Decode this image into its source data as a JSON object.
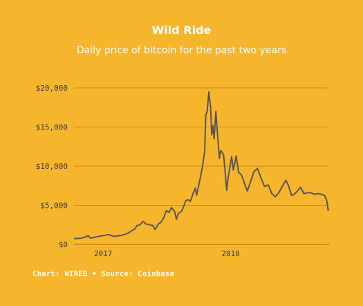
{
  "chart_data": {
    "type": "line",
    "title": "Wild Ride",
    "subtitle": "Daily price of bitcoin for the past two years",
    "xlabel": "",
    "ylabel": "",
    "ylim": [
      0,
      20000
    ],
    "xlim": [
      "2016-11-26",
      "2018-11-26"
    ],
    "grid": true,
    "colors": {
      "background": "#F5B62E",
      "line": "#5A5552",
      "grid": "#B97C16",
      "text": "#FFFFFF"
    },
    "yticks": [
      {
        "value": 0,
        "label": "$0"
      },
      {
        "value": 5000,
        "label": "$5,000"
      },
      {
        "value": 10000,
        "label": "$10,000"
      },
      {
        "value": 15000,
        "label": "$15,000"
      },
      {
        "value": 20000,
        "label": "$20,000"
      }
    ],
    "xticks": [
      {
        "value": "2017-01-01",
        "label": "2017"
      },
      {
        "value": "2018-01-01",
        "label": "2018"
      }
    ],
    "series": [
      {
        "x": [
          "2016-11-26",
          "2016-12-15",
          "2017-01-01",
          "2017-01-05",
          "2017-01-12",
          "2017-02-01",
          "2017-02-25",
          "2017-03-05",
          "2017-03-20",
          "2017-04-01",
          "2017-04-15",
          "2017-05-01",
          "2017-05-10",
          "2017-05-20",
          "2017-05-25",
          "2017-06-01",
          "2017-06-12",
          "2017-06-20",
          "2017-07-01",
          "2017-07-10",
          "2017-07-16",
          "2017-07-25",
          "2017-08-01",
          "2017-08-10",
          "2017-08-17",
          "2017-08-25",
          "2017-09-01",
          "2017-09-10",
          "2017-09-15",
          "2017-09-20",
          "2017-10-01",
          "2017-10-12",
          "2017-10-20",
          "2017-10-25",
          "2017-11-01",
          "2017-11-08",
          "2017-11-12",
          "2017-11-20",
          "2017-11-28",
          "2017-12-05",
          "2017-12-08",
          "2017-12-12",
          "2017-12-17",
          "2017-12-22",
          "2017-12-25",
          "2017-12-28",
          "2018-01-01",
          "2018-01-06",
          "2018-01-10",
          "2018-01-16",
          "2018-01-20",
          "2018-01-28",
          "2018-02-01",
          "2018-02-06",
          "2018-02-10",
          "2018-02-20",
          "2018-02-25",
          "2018-03-05",
          "2018-03-12",
          "2018-03-20",
          "2018-03-28",
          "2018-04-06",
          "2018-04-15",
          "2018-04-25",
          "2018-05-05",
          "2018-05-15",
          "2018-05-25",
          "2018-06-05",
          "2018-06-15",
          "2018-06-25",
          "2018-07-05",
          "2018-07-15",
          "2018-07-25",
          "2018-08-01",
          "2018-08-10",
          "2018-08-15",
          "2018-08-25",
          "2018-09-05",
          "2018-09-15",
          "2018-09-25",
          "2018-10-05",
          "2018-10-15",
          "2018-10-25",
          "2018-11-05",
          "2018-11-14",
          "2018-11-19",
          "2018-11-23",
          "2018-11-26"
        ],
        "y": [
          740,
          780,
          1000,
          1120,
          800,
          990,
          1180,
          1250,
          1030,
          1080,
          1200,
          1450,
          1750,
          2000,
          2400,
          2450,
          2950,
          2600,
          2500,
          2400,
          1900,
          2600,
          2800,
          3400,
          4300,
          4100,
          4700,
          4200,
          3200,
          3900,
          4300,
          5600,
          5700,
          5500,
          6400,
          7200,
          6300,
          8000,
          9800,
          11800,
          16500,
          17000,
          19500,
          17500,
          14000,
          15200,
          13500,
          17000,
          14500,
          11000,
          12000,
          11500,
          9500,
          6900,
          8500,
          11200,
          9500,
          11300,
          9200,
          8900,
          7900,
          6800,
          8000,
          9300,
          9700,
          8500,
          7400,
          7600,
          6500,
          6100,
          6600,
          7400,
          8200,
          7600,
          6300,
          6300,
          6700,
          7300,
          6500,
          6600,
          6600,
          6400,
          6500,
          6400,
          6200,
          5600,
          4400,
          4500
        ]
      }
    ]
  },
  "footer": {
    "source": "Chart: WIRED • Source: Coinbase"
  }
}
